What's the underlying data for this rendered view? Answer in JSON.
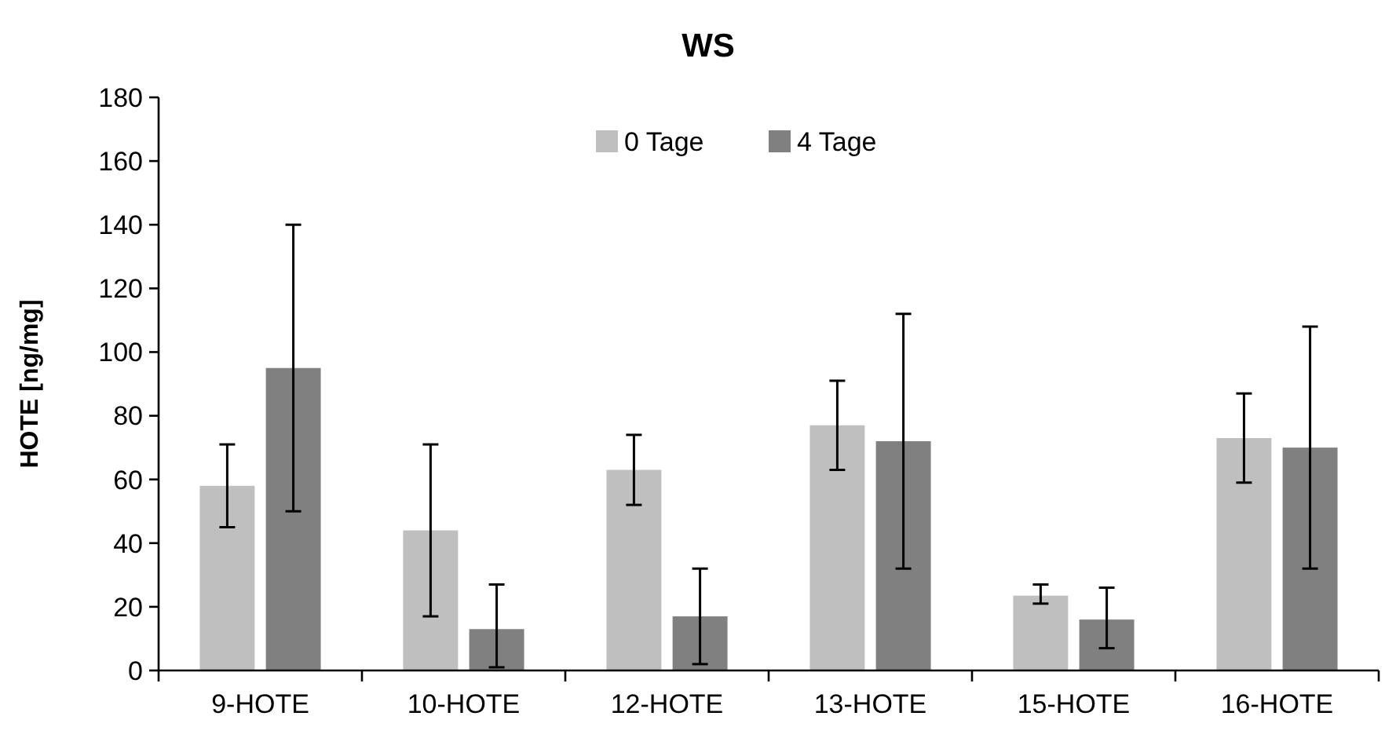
{
  "chart_data": {
    "type": "bar",
    "title": "WS",
    "ylabel": "HOTE [ng/mg]",
    "categories": [
      "9-HOTE",
      "10-HOTE",
      "12-HOTE",
      "13-HOTE",
      "15-HOTE",
      "16-HOTE"
    ],
    "series": [
      {
        "name": "0 Tage",
        "color": "#bfbfbf",
        "values": [
          58,
          44,
          63,
          77,
          23.5,
          73
        ],
        "errors": [
          [
            45,
            71
          ],
          [
            17,
            71
          ],
          [
            52,
            74
          ],
          [
            63,
            91
          ],
          [
            21,
            27
          ],
          [
            59,
            87
          ]
        ]
      },
      {
        "name": "4 Tage",
        "color": "#808080",
        "values": [
          95,
          13,
          17,
          72,
          16,
          70
        ],
        "errors": [
          [
            50,
            140
          ],
          [
            1,
            27
          ],
          [
            2,
            32
          ],
          [
            32,
            112
          ],
          [
            7,
            26
          ],
          [
            32,
            108
          ]
        ]
      }
    ],
    "ylim": [
      0,
      180
    ],
    "yticks": [
      0,
      20,
      40,
      60,
      80,
      100,
      120,
      140,
      160,
      180
    ],
    "grid": false,
    "legend": "top"
  }
}
